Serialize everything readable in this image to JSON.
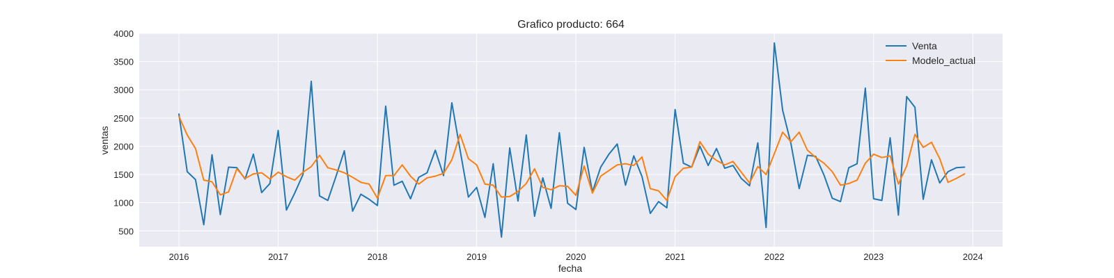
{
  "chart_data": {
    "type": "line",
    "title": "Grafico producto: 664",
    "xlabel": "fecha",
    "ylabel": "ventas",
    "xlim": [
      2015.6,
      2024.3
    ],
    "ylim": [
      220,
      4000
    ],
    "x_ticks": [
      2016,
      2017,
      2018,
      2019,
      2020,
      2021,
      2022,
      2023,
      2024
    ],
    "y_ticks": [
      500,
      1000,
      1500,
      2000,
      2500,
      3000,
      3500,
      4000
    ],
    "grid": true,
    "legend_position": "top-right",
    "x_start": "2016-01",
    "x_frequency": "monthly",
    "series": [
      {
        "name": "Venta",
        "color": "#1f77b4",
        "values": [
          2570,
          1550,
          1410,
          610,
          1850,
          790,
          1630,
          1620,
          1420,
          1860,
          1180,
          1340,
          2280,
          870,
          1170,
          1500,
          3150,
          1120,
          1040,
          1470,
          1920,
          850,
          1150,
          1060,
          950,
          2710,
          1310,
          1380,
          1070,
          1450,
          1530,
          1930,
          1480,
          2770,
          1930,
          1100,
          1270,
          740,
          1690,
          390,
          1970,
          1030,
          2200,
          760,
          1440,
          900,
          2240,
          990,
          880,
          1980,
          1190,
          1630,
          1860,
          2040,
          1310,
          1830,
          1460,
          810,
          1020,
          910,
          2650,
          1700,
          1630,
          2000,
          1660,
          1960,
          1610,
          1660,
          1430,
          1300,
          2060,
          560,
          3830,
          2640,
          2050,
          1250,
          1840,
          1820,
          1490,
          1080,
          1020,
          1620,
          1690,
          3030,
          1070,
          1040,
          2150,
          780,
          2880,
          2690,
          1060,
          1760,
          1350,
          1550,
          1620,
          1630
        ]
      },
      {
        "name": "Modelo_actual",
        "color": "#ff7f0e",
        "values": [
          2530,
          2200,
          1960,
          1400,
          1370,
          1140,
          1190,
          1600,
          1430,
          1510,
          1530,
          1420,
          1540,
          1460,
          1400,
          1540,
          1640,
          1840,
          1620,
          1580,
          1530,
          1450,
          1360,
          1330,
          1080,
          1480,
          1480,
          1670,
          1470,
          1330,
          1440,
          1470,
          1520,
          1760,
          2210,
          1780,
          1670,
          1330,
          1310,
          1100,
          1110,
          1200,
          1340,
          1600,
          1270,
          1230,
          1300,
          1290,
          1130,
          1650,
          1170,
          1470,
          1570,
          1670,
          1690,
          1660,
          1810,
          1250,
          1210,
          1040,
          1460,
          1610,
          1630,
          2080,
          1860,
          1750,
          1670,
          1730,
          1540,
          1350,
          1640,
          1500,
          1870,
          2250,
          2080,
          2250,
          1930,
          1800,
          1700,
          1550,
          1310,
          1340,
          1400,
          1700,
          1860,
          1800,
          1830,
          1330,
          1650,
          2210,
          1980,
          2070,
          1780,
          1360,
          1430,
          1510
        ]
      }
    ]
  }
}
